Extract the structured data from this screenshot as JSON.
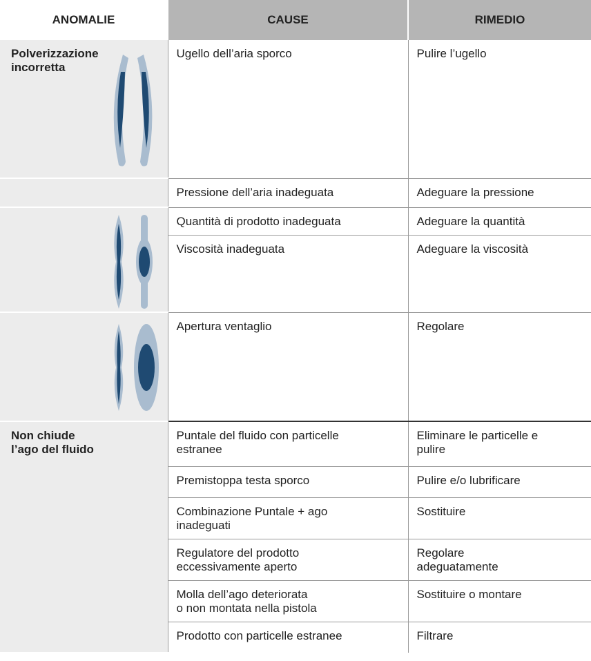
{
  "table": {
    "headers": [
      "ANOMALIE",
      "CAUSE",
      "RIMEDIO"
    ],
    "groups": [
      {
        "anomaly": "Polverizzazione\nincorretta",
        "rows": [
          [
            "Ugello dell’aria sporco",
            "Pulire l’ugello"
          ],
          [
            "Pressione dell’aria inadeguata",
            "Adeguare la pressione"
          ],
          [
            "Quantità di prodotto inadeguata",
            "Adeguare la quantità"
          ],
          [
            "Viscosità inadeguata",
            "Adeguare la viscosità"
          ],
          [
            "Apertura ventaglio",
            "Regolare"
          ]
        ]
      },
      {
        "anomaly": "Non chiude\nl’ago del fluido",
        "rows": [
          [
            "Puntale del fluido con particelle\nestranee",
            "Eliminare le particelle e\npulire"
          ],
          [
            "Premistoppa testa sporco",
            "Pulire e/o lubrificare"
          ],
          [
            "Combinazione Puntale + ago\ninadeguati",
            "Sostituire"
          ],
          [
            "Regulatore del prodotto\neccessivamente aperto",
            "Regolare\nadeguatamente"
          ],
          [
            "Molla dell’ago deteriorata\no non montata nella pistola",
            "Sostituire o montare"
          ],
          [
            "Prodotto con particelle estranee",
            "Filtrare"
          ]
        ]
      }
    ]
  }
}
